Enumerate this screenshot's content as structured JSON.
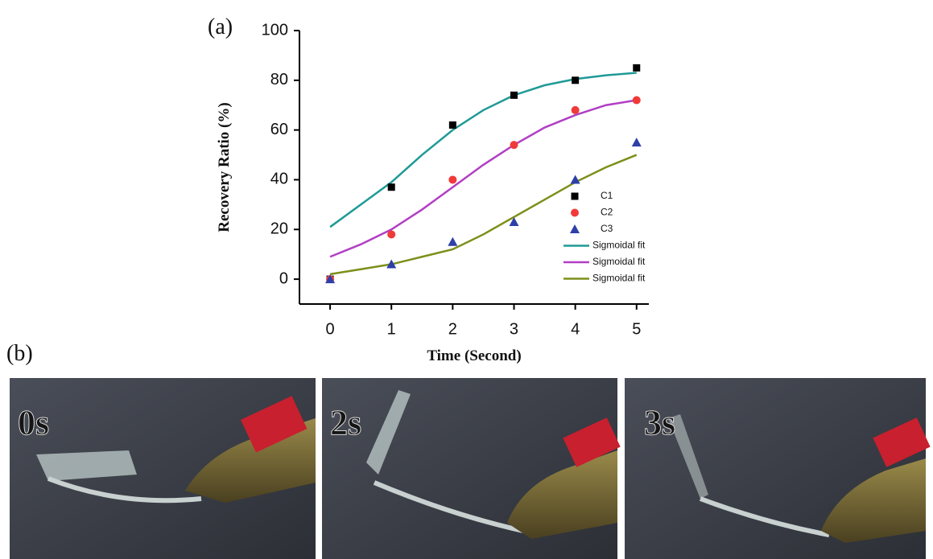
{
  "chart_data": {
    "type": "scatter",
    "xlabel": "Time (Second)",
    "ylabel": "Recovery Ratio (%)",
    "xlim": [
      -0.5,
      5.2
    ],
    "xticks": [
      0,
      1,
      2,
      3,
      4,
      5
    ],
    "ylim": [
      -10,
      100
    ],
    "yticks": [
      0,
      20,
      40,
      60,
      80,
      100
    ],
    "legend": "center right",
    "series": [
      {
        "name": "C1",
        "color": "#000000",
        "marker": "square",
        "x": [
          0,
          1,
          2,
          3,
          4,
          5
        ],
        "values": [
          0,
          37,
          62,
          74,
          80,
          85
        ]
      },
      {
        "name": "C2",
        "color": "#f03a3a",
        "marker": "circle",
        "x": [
          0,
          1,
          2,
          3,
          4,
          5
        ],
        "values": [
          0,
          18,
          40,
          54,
          68,
          72
        ]
      },
      {
        "name": "C3",
        "color": "#2f3fa8",
        "marker": "triangle",
        "x": [
          0,
          1,
          2,
          3,
          4,
          5
        ],
        "values": [
          0,
          6,
          15,
          23,
          40,
          55
        ]
      },
      {
        "name": "Sigmoidal fit",
        "color": "#1f9a96",
        "marker": "line",
        "x": [
          0,
          0.5,
          1,
          1.5,
          2,
          2.5,
          3,
          3.5,
          4,
          4.5,
          5
        ],
        "values": [
          21,
          30,
          39,
          50,
          60,
          68,
          74,
          78,
          80.5,
          82,
          83
        ]
      },
      {
        "name": "Sigmoidal fit",
        "color": "#b13fc4",
        "marker": "line",
        "x": [
          0,
          0.5,
          1,
          1.5,
          2,
          2.5,
          3,
          3.5,
          4,
          4.5,
          5
        ],
        "values": [
          9,
          14,
          20,
          28,
          37,
          46,
          54,
          61,
          66,
          70,
          72
        ]
      },
      {
        "name": "Sigmoidal fit",
        "color": "#7d8f1a",
        "marker": "line",
        "x": [
          0,
          0.5,
          1,
          1.5,
          2,
          2.5,
          3,
          3.5,
          4,
          4.5,
          5
        ],
        "values": [
          2,
          4,
          6,
          9,
          12,
          18,
          25,
          32,
          39,
          45,
          50
        ]
      }
    ]
  },
  "panel_labels": [
    "(a)",
    "(b)"
  ],
  "photos": [
    {
      "label": "0s"
    },
    {
      "label": "2s"
    },
    {
      "label": "3s"
    }
  ]
}
